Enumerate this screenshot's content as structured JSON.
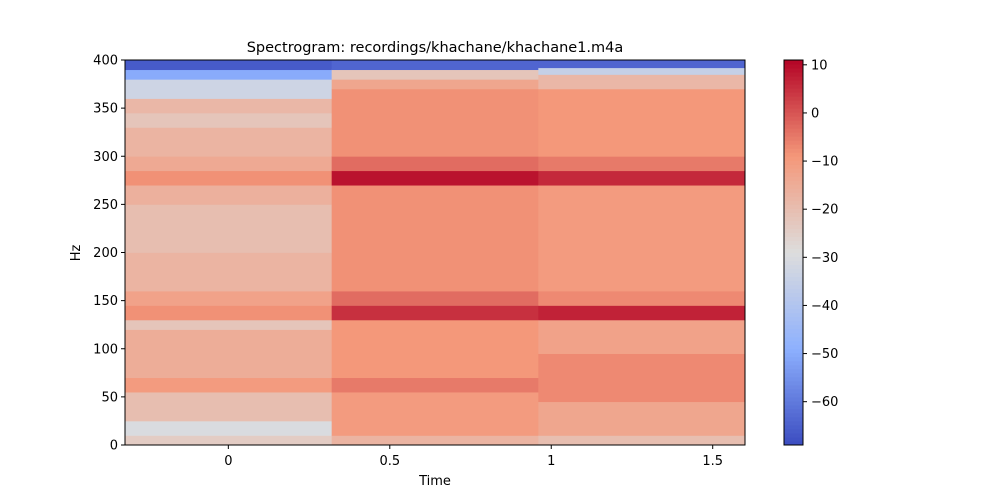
{
  "chart_data": {
    "type": "heatmap",
    "title": "Spectrogram: recordings/khachane/khachane1.m4a",
    "xlabel": "Time",
    "ylabel": "Hz",
    "xlim": [
      -0.32,
      1.6
    ],
    "ylim": [
      0,
      400
    ],
    "x_ticks": [
      {
        "value": 0,
        "label": "0"
      },
      {
        "value": 0.5,
        "label": "0.5"
      },
      {
        "value": 1,
        "label": "1"
      },
      {
        "value": 1.5,
        "label": "1.5"
      }
    ],
    "y_ticks": [
      {
        "value": 0,
        "label": "0"
      },
      {
        "value": 50,
        "label": "50"
      },
      {
        "value": 100,
        "label": "100"
      },
      {
        "value": 150,
        "label": "150"
      },
      {
        "value": 200,
        "label": "200"
      },
      {
        "value": 250,
        "label": "250"
      },
      {
        "value": 300,
        "label": "300"
      },
      {
        "value": 350,
        "label": "350"
      },
      {
        "value": 400,
        "label": "400"
      }
    ],
    "colorbar": {
      "colormap": "coolwarm",
      "range": [
        -69,
        11
      ],
      "ticks": [
        {
          "value": 10,
          "label": "10"
        },
        {
          "value": 0,
          "label": "0"
        },
        {
          "value": -10,
          "label": "−10"
        },
        {
          "value": -20,
          "label": "−20"
        },
        {
          "value": -30,
          "label": "−30"
        },
        {
          "value": -40,
          "label": "−40"
        },
        {
          "value": -50,
          "label": "−50"
        },
        {
          "value": -60,
          "label": "−60"
        }
      ]
    },
    "time_frames": [
      {
        "start": -0.32,
        "end": 0.32
      },
      {
        "start": 0.32,
        "end": 0.96
      },
      {
        "start": 0.96,
        "end": 1.6
      }
    ],
    "frame_levels_db": [
      [
        {
          "hz_from": 0,
          "hz_to": 10,
          "db": -24
        },
        {
          "hz_from": 10,
          "hz_to": 25,
          "db": -30
        },
        {
          "hz_from": 25,
          "hz_to": 55,
          "db": -20
        },
        {
          "hz_from": 55,
          "hz_to": 70,
          "db": -10
        },
        {
          "hz_from": 70,
          "hz_to": 120,
          "db": -15
        },
        {
          "hz_from": 120,
          "hz_to": 130,
          "db": -22
        },
        {
          "hz_from": 130,
          "hz_to": 145,
          "db": -8
        },
        {
          "hz_from": 145,
          "hz_to": 160,
          "db": -12
        },
        {
          "hz_from": 160,
          "hz_to": 200,
          "db": -17
        },
        {
          "hz_from": 200,
          "hz_to": 250,
          "db": -20
        },
        {
          "hz_from": 250,
          "hz_to": 270,
          "db": -16
        },
        {
          "hz_from": 270,
          "hz_to": 285,
          "db": -8
        },
        {
          "hz_from": 285,
          "hz_to": 300,
          "db": -14
        },
        {
          "hz_from": 300,
          "hz_to": 330,
          "db": -17
        },
        {
          "hz_from": 330,
          "hz_to": 345,
          "db": -22
        },
        {
          "hz_from": 345,
          "hz_to": 360,
          "db": -18
        },
        {
          "hz_from": 360,
          "hz_to": 380,
          "db": -33
        },
        {
          "hz_from": 380,
          "hz_to": 390,
          "db": -50
        },
        {
          "hz_from": 390,
          "hz_to": 400,
          "db": -66
        }
      ],
      [
        {
          "hz_from": 0,
          "hz_to": 10,
          "db": -17
        },
        {
          "hz_from": 10,
          "hz_to": 55,
          "db": -10
        },
        {
          "hz_from": 55,
          "hz_to": 70,
          "db": -5
        },
        {
          "hz_from": 70,
          "hz_to": 130,
          "db": -9
        },
        {
          "hz_from": 130,
          "hz_to": 145,
          "db": 5
        },
        {
          "hz_from": 145,
          "hz_to": 160,
          "db": -3
        },
        {
          "hz_from": 160,
          "hz_to": 270,
          "db": -8
        },
        {
          "hz_from": 270,
          "hz_to": 285,
          "db": 9
        },
        {
          "hz_from": 285,
          "hz_to": 300,
          "db": -3
        },
        {
          "hz_from": 300,
          "hz_to": 370,
          "db": -8
        },
        {
          "hz_from": 370,
          "hz_to": 380,
          "db": -13
        },
        {
          "hz_from": 380,
          "hz_to": 390,
          "db": -22
        },
        {
          "hz_from": 390,
          "hz_to": 400,
          "db": -64
        }
      ],
      [
        {
          "hz_from": 0,
          "hz_to": 10,
          "db": -20
        },
        {
          "hz_from": 10,
          "hz_to": 45,
          "db": -13
        },
        {
          "hz_from": 45,
          "hz_to": 95,
          "db": -7
        },
        {
          "hz_from": 95,
          "hz_to": 130,
          "db": -12
        },
        {
          "hz_from": 130,
          "hz_to": 145,
          "db": 7
        },
        {
          "hz_from": 145,
          "hz_to": 160,
          "db": -7
        },
        {
          "hz_from": 160,
          "hz_to": 270,
          "db": -10
        },
        {
          "hz_from": 270,
          "hz_to": 285,
          "db": 6
        },
        {
          "hz_from": 285,
          "hz_to": 300,
          "db": -5
        },
        {
          "hz_from": 300,
          "hz_to": 370,
          "db": -9
        },
        {
          "hz_from": 370,
          "hz_to": 385,
          "db": -18
        },
        {
          "hz_from": 385,
          "hz_to": 392,
          "db": -35
        },
        {
          "hz_from": 392,
          "hz_to": 400,
          "db": -64
        }
      ]
    ]
  }
}
